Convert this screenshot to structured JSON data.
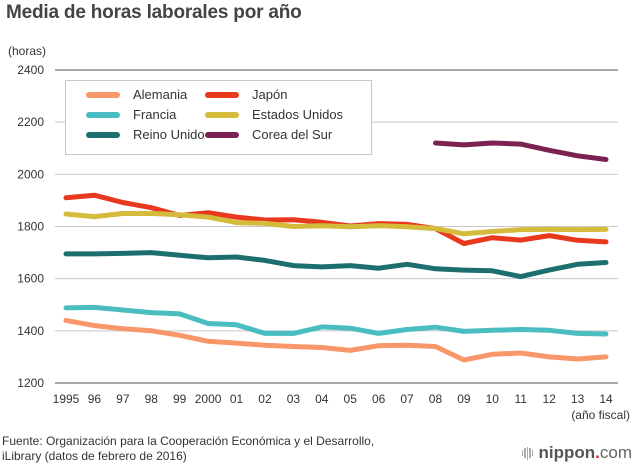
{
  "title": "Media de horas laborales por año",
  "source_text_line1": "Fuente: Organización para la Cooperación Económica y el Desarrollo,",
  "source_text_line2": "iLibrary (datos de febrero de 2016)",
  "logo": {
    "name": "nippon",
    "dot": ".",
    "suffix": "com"
  },
  "chart_data": {
    "type": "line",
    "title": "Media de horas laborales por año",
    "xlabel": "(año fiscal)",
    "ylabel": "(horas)",
    "ylim": [
      1200,
      2400
    ],
    "yticks": [
      1200,
      1400,
      1600,
      1800,
      2000,
      2200,
      2400
    ],
    "ytick_labels": [
      "1200",
      "1400",
      "1600",
      "1800",
      "2000",
      "2200",
      "2400"
    ],
    "x": [
      1995,
      1996,
      1997,
      1998,
      1999,
      2000,
      2001,
      2002,
      2003,
      2004,
      2005,
      2006,
      2007,
      2008,
      2009,
      2010,
      2011,
      2012,
      2013,
      2014
    ],
    "xtick_labels": [
      "1995",
      "96",
      "97",
      "98",
      "99",
      "2000",
      "01",
      "02",
      "03",
      "04",
      "05",
      "06",
      "07",
      "08",
      "09",
      "10",
      "11",
      "12",
      "13",
      "14"
    ],
    "grid": true,
    "legend_position": "top-left",
    "series": [
      {
        "name": "Alemania",
        "color": "#f7976a",
        "values": [
          1440,
          1420,
          1408,
          1400,
          1383,
          1360,
          1353,
          1345,
          1340,
          1336,
          1325,
          1343,
          1345,
          1340,
          1288,
          1310,
          1315,
          1300,
          1292,
          1300
        ]
      },
      {
        "name": "Francia",
        "color": "#49bdc0",
        "values": [
          1488,
          1490,
          1480,
          1470,
          1465,
          1428,
          1423,
          1390,
          1390,
          1415,
          1410,
          1390,
          1405,
          1414,
          1398,
          1402,
          1405,
          1402,
          1390,
          1388
        ]
      },
      {
        "name": "Reino Unido",
        "color": "#1c6f6e",
        "values": [
          1695,
          1695,
          1697,
          1700,
          1690,
          1680,
          1683,
          1670,
          1650,
          1645,
          1650,
          1640,
          1655,
          1638,
          1633,
          1630,
          1608,
          1633,
          1655,
          1662
        ]
      },
      {
        "name": "Japón",
        "color": "#e8381d",
        "values": [
          1910,
          1920,
          1892,
          1872,
          1842,
          1853,
          1836,
          1825,
          1826,
          1816,
          1802,
          1811,
          1808,
          1792,
          1735,
          1757,
          1748,
          1765,
          1747,
          1741
        ]
      },
      {
        "name": "Estados Unidos",
        "color": "#d4bb3c",
        "values": [
          1848,
          1838,
          1850,
          1850,
          1845,
          1836,
          1815,
          1812,
          1800,
          1803,
          1799,
          1803,
          1799,
          1792,
          1772,
          1781,
          1788,
          1789,
          1788,
          1789
        ]
      },
      {
        "name": "Corea del Sur",
        "color": "#7c2252",
        "values": [
          null,
          null,
          null,
          null,
          null,
          null,
          null,
          null,
          null,
          null,
          null,
          null,
          null,
          2120,
          2113,
          2120,
          2116,
          2092,
          2071,
          2057
        ]
      }
    ]
  }
}
